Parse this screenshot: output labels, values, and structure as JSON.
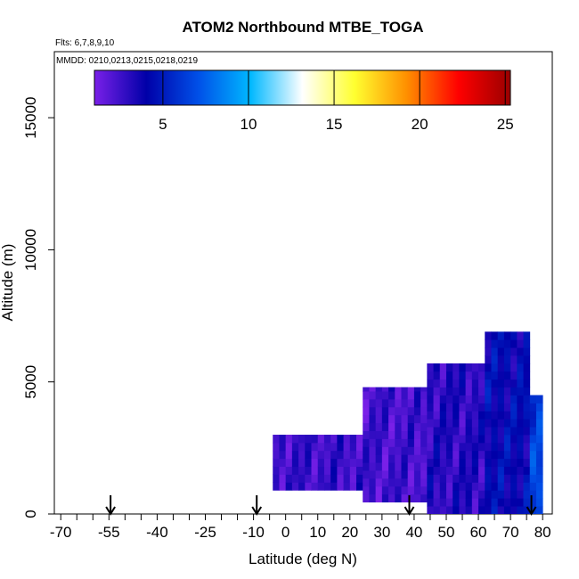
{
  "chart_data": {
    "type": "heatmap",
    "title": "ATOM2 Northbound MTBE_TOGA",
    "flights_note": "Flts: 6,7,8,9,10",
    "dates_note": "MMDD: 0210,0213,0215,0218,0219",
    "xlabel": "Latitude (deg N)",
    "ylabel": "Altitude (m)",
    "xlim": [
      -72,
      83
    ],
    "ylim": [
      0,
      17500
    ],
    "x_ticks": [
      "-70",
      "-55",
      "-40",
      "-25",
      "-10",
      "0",
      "10",
      "20",
      "30",
      "40",
      "50",
      "60",
      "70",
      "80"
    ],
    "y_ticks": [
      "0",
      "5000",
      "10000",
      "15000"
    ],
    "colorbar": {
      "min": 1,
      "max": 25.3,
      "ticks": [
        "5",
        "10",
        "15",
        "20",
        "25"
      ],
      "colors": [
        "#7a20e8",
        "#0000a8",
        "#0050e8",
        "#00b8ff",
        "#ffffff",
        "#ffff30",
        "#ff9000",
        "#ff0000",
        "#9a0000"
      ]
    },
    "arrows_lat": [
      -54.5,
      -9,
      38.5,
      76.5
    ],
    "distribution_ranges": [
      {
        "lat": [
          -4,
          24
        ],
        "alt": [
          900,
          3000
        ],
        "value": 2.6
      },
      {
        "lat": [
          24,
          44
        ],
        "alt": [
          450,
          4800
        ],
        "value": 2.4
      },
      {
        "lat": [
          44,
          62
        ],
        "alt": [
          0,
          5700
        ],
        "value": 3.1
      },
      {
        "lat": [
          62,
          76
        ],
        "alt": [
          0,
          6900
        ],
        "value": 4.2
      },
      {
        "lat": [
          76,
          80
        ],
        "alt": [
          0,
          4500
        ],
        "value": 6.5
      }
    ]
  }
}
